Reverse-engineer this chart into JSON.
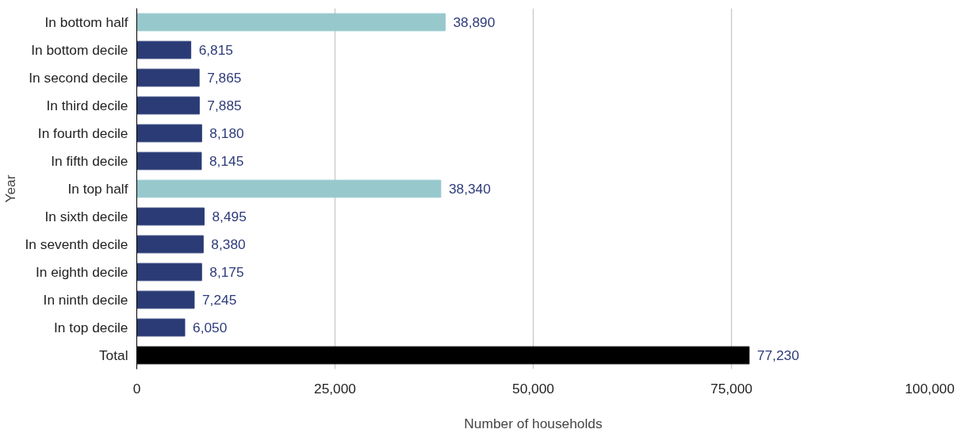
{
  "chart_data": {
    "type": "bar",
    "orientation": "horizontal",
    "xlabel": "Number of households",
    "ylabel": "Year",
    "categories": [
      "In bottom half",
      "In bottom decile",
      "In second decile",
      "In third decile",
      "In fourth decile",
      "In fifth decile",
      "In top half",
      "In sixth decile",
      "In seventh decile",
      "In eighth decile",
      "In ninth decile",
      "In top decile",
      "Total"
    ],
    "values": [
      38890,
      6815,
      7865,
      7885,
      8180,
      8145,
      38340,
      8495,
      8380,
      8175,
      7245,
      6050,
      77230
    ],
    "colors": [
      "#96c8cc",
      "#2a3b75",
      "#2a3b75",
      "#2a3b75",
      "#2a3b75",
      "#2a3b75",
      "#96c8cc",
      "#2a3b75",
      "#2a3b75",
      "#2a3b75",
      "#2a3b75",
      "#2a3b75",
      "#000000"
    ],
    "xlim": [
      0,
      100000
    ],
    "xticks": [
      {
        "value": 0,
        "label": "0"
      },
      {
        "value": 25000,
        "label": "25,000"
      },
      {
        "value": 50000,
        "label": "50,000"
      },
      {
        "value": 75000,
        "label": "75,000"
      },
      {
        "value": 100000,
        "label": "100,000"
      }
    ],
    "value_labels": [
      "38,890",
      "6,815",
      "7,865",
      "7,885",
      "8,180",
      "8,145",
      "38,340",
      "8,495",
      "8,380",
      "8,175",
      "7,245",
      "6,050",
      "77,230"
    ],
    "grid": "x"
  }
}
